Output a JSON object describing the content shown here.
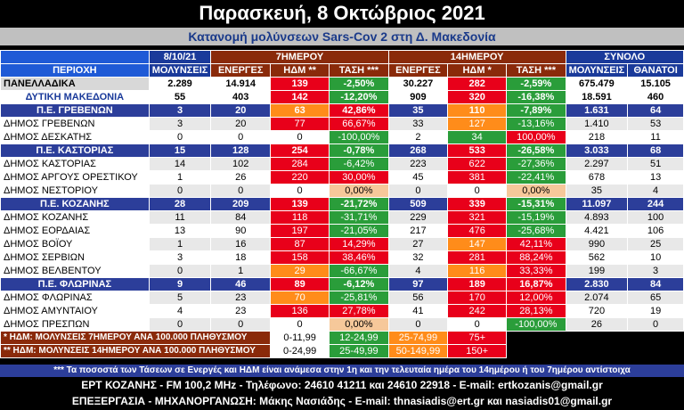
{
  "title": "Παρασκευή, 8 Οκτώβριος 2021",
  "subtitle": "Κατανομή μολύνσεων Sars-Cov 2 στη Δ. Μακεδονία",
  "headers": {
    "date": "8/10/21",
    "period7": "7ΗΜΕΡΟΥ",
    "period14": "14ΗΜΕΡΟΥ",
    "total": "ΣΥΝΟΛΟ",
    "area": "ΠΕΡΙΟΧΗ",
    "infections": "ΜΟΛΥΝΣΕΙΣ",
    "active7": "ΕΝΕΡΓΕΣ",
    "idm7": "ΗΔΜ **",
    "trend7": "ΤΑΣΗ ***",
    "active14": "ΕΝΕΡΓΕΣ",
    "idm14": "ΗΔΜ *",
    "trend14": "ΤΑΣΗ ***",
    "total_inf": "ΜΟΛΥΝΣΕΙΣ",
    "deaths": "ΘΑΝΑΤΟΙ"
  },
  "rows": [
    {
      "name": "ΠΑΝΕΛΛΑΔΙΚΑ",
      "type": "national",
      "v": [
        "2.289",
        "14.914",
        "139",
        "-2,50%",
        "30.227",
        "282",
        "-2,59%",
        "675.479",
        "15.105"
      ],
      "c": [
        "white",
        "white",
        "red",
        "green",
        "white",
        "red",
        "green",
        "white",
        "white"
      ]
    },
    {
      "name": "ΔΥΤΙΚΗ ΜΑΚΕΔΟΝΙΑ",
      "type": "wmac",
      "v": [
        "55",
        "403",
        "142",
        "-12,20%",
        "909",
        "320",
        "-16,38%",
        "18.591",
        "460"
      ],
      "c": [
        "white",
        "white",
        "red",
        "green",
        "white",
        "red",
        "green",
        "white",
        "white"
      ]
    },
    {
      "name": "Π.Ε. ΓΡΕΒΕΝΩΝ",
      "type": "unit",
      "v": [
        "3",
        "20",
        "63",
        "42,86%",
        "35",
        "110",
        "-7,89%",
        "1.631",
        "64"
      ],
      "c": [
        "navy",
        "navy",
        "orange",
        "red",
        "navy",
        "orange",
        "green",
        "navy",
        "navy"
      ]
    },
    {
      "name": "ΔΗΜΟΣ ΓΡΕΒΕΝΩΝ",
      "type": "mun",
      "v": [
        "3",
        "20",
        "77",
        "66,67%",
        "33",
        "127",
        "-13,16%",
        "1.410",
        "53"
      ],
      "c": [
        "light",
        "light",
        "red",
        "red",
        "light",
        "orange",
        "green",
        "light",
        "light"
      ]
    },
    {
      "name": "ΔΗΜΟΣ ΔΕΣΚΑΤΗΣ",
      "type": "mun",
      "v": [
        "0",
        "0",
        "0",
        "-100,00%",
        "2",
        "34",
        "100,00%",
        "218",
        "11"
      ],
      "c": [
        "white",
        "white",
        "white",
        "green",
        "white",
        "green",
        "red",
        "white",
        "white"
      ]
    },
    {
      "name": "Π.Ε. ΚΑΣΤΟΡΙΑΣ",
      "type": "unit",
      "v": [
        "15",
        "128",
        "254",
        "-0,78%",
        "268",
        "533",
        "-26,58%",
        "3.033",
        "68"
      ],
      "c": [
        "navy",
        "navy",
        "red",
        "green",
        "navy",
        "red",
        "green",
        "navy",
        "navy"
      ]
    },
    {
      "name": "ΔΗΜΟΣ ΚΑΣΤΟΡΙΑΣ",
      "type": "mun",
      "v": [
        "14",
        "102",
        "284",
        "-6,42%",
        "223",
        "622",
        "-27,36%",
        "2.297",
        "51"
      ],
      "c": [
        "light",
        "light",
        "red",
        "green",
        "light",
        "red",
        "green",
        "light",
        "light"
      ]
    },
    {
      "name": "ΔΗΜΟΣ ΑΡΓΟΥΣ ΟΡΕΣΤΙΚΟΥ",
      "type": "mun",
      "v": [
        "1",
        "26",
        "220",
        "30,00%",
        "45",
        "381",
        "-22,41%",
        "678",
        "13"
      ],
      "c": [
        "white",
        "white",
        "red",
        "red",
        "white",
        "red",
        "green",
        "white",
        "white"
      ]
    },
    {
      "name": "ΔΗΜΟΣ ΝΕΣΤΟΡΙΟΥ",
      "type": "mun",
      "v": [
        "0",
        "0",
        "0",
        "0,00%",
        "0",
        "0",
        "0,00%",
        "35",
        "4"
      ],
      "c": [
        "light",
        "light",
        "white",
        "peach",
        "light",
        "white",
        "peach",
        "light",
        "light"
      ]
    },
    {
      "name": "Π.Ε. ΚΟΖΑΝΗΣ",
      "type": "unit",
      "v": [
        "28",
        "209",
        "139",
        "-21,72%",
        "509",
        "339",
        "-15,31%",
        "11.097",
        "244"
      ],
      "c": [
        "navy",
        "navy",
        "red",
        "green",
        "navy",
        "red",
        "green",
        "navy",
        "navy"
      ]
    },
    {
      "name": "ΔΗΜΟΣ ΚΟΖΑΝΗΣ",
      "type": "mun",
      "v": [
        "11",
        "84",
        "118",
        "-31,71%",
        "229",
        "321",
        "-15,19%",
        "4.893",
        "100"
      ],
      "c": [
        "light",
        "light",
        "red",
        "green",
        "light",
        "red",
        "green",
        "light",
        "light"
      ]
    },
    {
      "name": "ΔΗΜΟΣ ΕΟΡΔΑΙΑΣ",
      "type": "mun",
      "v": [
        "13",
        "90",
        "197",
        "-21,05%",
        "217",
        "476",
        "-25,68%",
        "4.421",
        "106"
      ],
      "c": [
        "white",
        "white",
        "red",
        "green",
        "white",
        "red",
        "green",
        "white",
        "white"
      ]
    },
    {
      "name": "ΔΗΜΟΣ ΒΟΪΟΥ",
      "type": "mun",
      "v": [
        "1",
        "16",
        "87",
        "14,29%",
        "27",
        "147",
        "42,11%",
        "990",
        "25"
      ],
      "c": [
        "light",
        "light",
        "red",
        "red",
        "light",
        "orange",
        "red",
        "light",
        "light"
      ]
    },
    {
      "name": "ΔΗΜΟΣ ΣΕΡΒΙΩΝ",
      "type": "mun",
      "v": [
        "3",
        "18",
        "158",
        "38,46%",
        "32",
        "281",
        "88,24%",
        "562",
        "10"
      ],
      "c": [
        "white",
        "white",
        "red",
        "red",
        "white",
        "red",
        "red",
        "white",
        "white"
      ]
    },
    {
      "name": "ΔΗΜΟΣ ΒΕΛΒΕΝΤΟΥ",
      "type": "mun",
      "v": [
        "0",
        "1",
        "29",
        "-66,67%",
        "4",
        "116",
        "33,33%",
        "199",
        "3"
      ],
      "c": [
        "light",
        "light",
        "orange",
        "green",
        "light",
        "orange",
        "red",
        "light",
        "light"
      ]
    },
    {
      "name": "Π.Ε. ΦΛΩΡΙΝΑΣ",
      "type": "unit",
      "v": [
        "9",
        "46",
        "89",
        "-6,12%",
        "97",
        "189",
        "16,87%",
        "2.830",
        "84"
      ],
      "c": [
        "navy",
        "navy",
        "red",
        "green",
        "navy",
        "red",
        "red",
        "navy",
        "navy"
      ]
    },
    {
      "name": "ΔΗΜΟΣ ΦΛΩΡΙΝΑΣ",
      "type": "mun",
      "v": [
        "5",
        "23",
        "70",
        "-25,81%",
        "56",
        "170",
        "12,00%",
        "2.074",
        "65"
      ],
      "c": [
        "light",
        "light",
        "orange",
        "green",
        "light",
        "red",
        "red",
        "light",
        "light"
      ]
    },
    {
      "name": "ΔΗΜΟΣ ΑΜΥΝΤΑΙΟΥ",
      "type": "mun",
      "v": [
        "4",
        "23",
        "136",
        "27,78%",
        "41",
        "242",
        "28,13%",
        "720",
        "19"
      ],
      "c": [
        "white",
        "white",
        "red",
        "red",
        "white",
        "red",
        "red",
        "white",
        "white"
      ]
    },
    {
      "name": "ΔΗΜΟΣ ΠΡΕΣΠΩΝ",
      "type": "mun",
      "v": [
        "0",
        "0",
        "0",
        "0,00%",
        "0",
        "0",
        "-100,00%",
        "26",
        "0"
      ],
      "c": [
        "light",
        "light",
        "white",
        "peach",
        "light",
        "white",
        "green",
        "light",
        "light"
      ]
    }
  ],
  "legend": [
    {
      "label": "* ΗΔΜ: ΜΟΛΥΝΣΕΙΣ 7ΗΜΕΡΟΥ ΑΝΑ 100.000 ΠΛΗΘΥΣΜΟΥ",
      "r": [
        "0-11,99",
        "12-24,99",
        "25-74,99",
        "75+"
      ]
    },
    {
      "label": "** ΗΔΜ: ΜΟΛΥΝΣΕΙΣ 14ΗΜΕΡΟΥ ΑΝΑ 100.000 ΠΛΗΘΥΣΜΟΥ",
      "r": [
        "0-24,99",
        "25-49,99",
        "50-149,99",
        "150+"
      ]
    }
  ],
  "footnote": "*** Τα ποσοστά των Τάσεων σε Ενεργές και ΗΔΜ είναι ανάμεσα στην 1η και την τελευταία ημέρα του 14ημέρου ή του 7ημέρου αντίστοιχα",
  "footer1": "ΕΡΤ ΚΟΖΑΝΗΣ - FM 100,2 MHz - Τηλέφωνο:  24610 41211 και 24610 22918  - E-mail: ertkozanis@gmail.gr",
  "footer2": "ΕΠΕΞΕΡΓΑΣΙΑ  -  ΜΗΧΑΝΟΡΓΑΝΩΣΗ: Μάκης Νασιάδης  -  E-mail: thnasiadis@ert.gr και nasiadis01@gmail.gr",
  "colors": {
    "red": "#e8001a",
    "orange": "#ff8c1a",
    "green": "#2a9d3a",
    "navy": "#2c3e9a",
    "peach": "#f6c89a",
    "brown": "#8a2a0a"
  }
}
